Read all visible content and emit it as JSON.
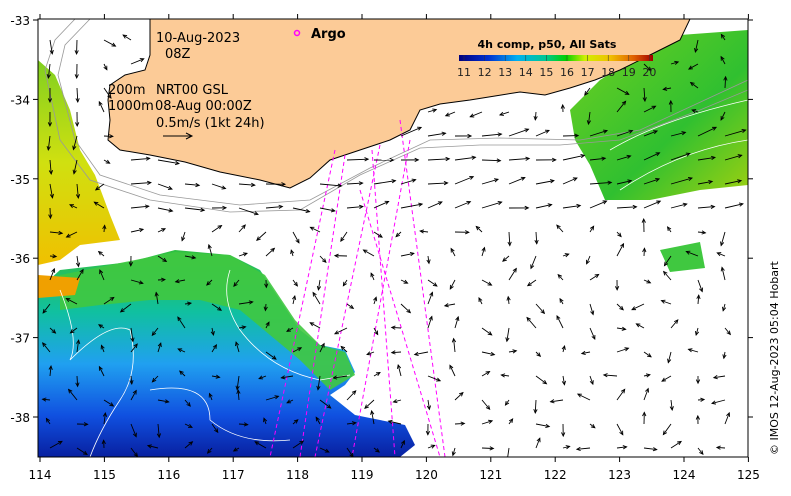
{
  "map": {
    "date": "10-Aug-2023",
    "time": "08Z",
    "legend_argo": "Argo",
    "contour_200": "200m",
    "contour_1000": "1000m",
    "product": "NRT00 GSL",
    "product_date": "08-Aug 00:00Z",
    "vector_scale": "0.5m/s (1kt 24h)",
    "colorbar_title": "4h comp, p50, All Sats",
    "colorbar_ticks": [
      "11",
      "12",
      "13",
      "14",
      "15",
      "16",
      "17",
      "18",
      "19",
      "20"
    ],
    "credit": "© IMOS 12-Aug-2023 05:04 Hobart",
    "x_ticks": [
      "114",
      "115",
      "116",
      "117",
      "118",
      "119",
      "120",
      "121",
      "122",
      "123",
      "124",
      "125"
    ],
    "y_ticks": [
      "-33",
      "-34",
      "-35",
      "-36",
      "-37",
      "-38"
    ],
    "colors": {
      "land": "#fccb97",
      "argo": "#ff00ff",
      "track": "#ff00ff"
    }
  }
}
